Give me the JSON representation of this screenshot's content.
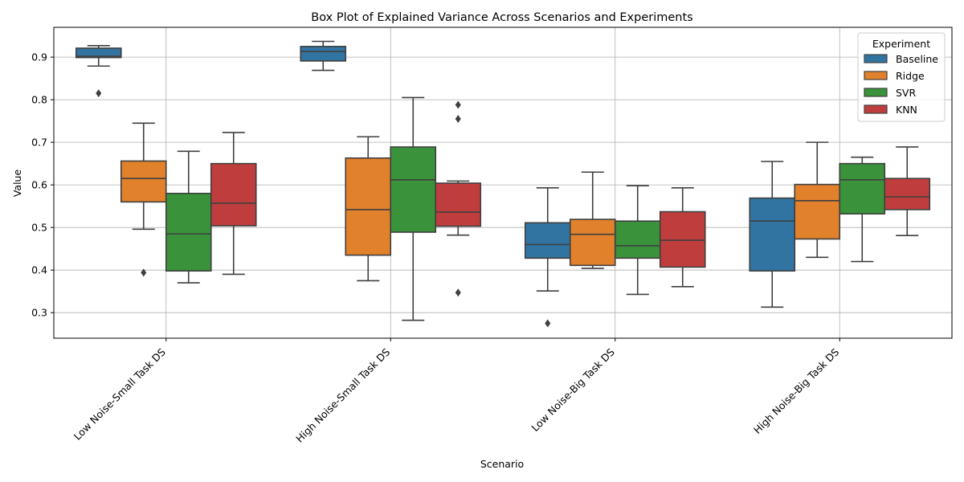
{
  "chart_data": {
    "type": "box",
    "title": "Box Plot of Explained Variance Across Scenarios and Experiments",
    "xlabel": "Scenario",
    "ylabel": "Value",
    "categories": [
      "Low Noise-Small Task DS",
      "High Noise-Small Task DS",
      "Low Noise-Big Task DS",
      "High Noise-Big Task DS"
    ],
    "ylim": [
      0.24,
      0.97
    ],
    "yticks": [
      "0.3",
      "0.4",
      "0.5",
      "0.6",
      "0.7",
      "0.8",
      "0.9"
    ],
    "grid": true,
    "legend": {
      "title": "Experiment",
      "placement": "top-right"
    },
    "series": [
      {
        "name": "Baseline",
        "color": "#3274a1",
        "boxes": [
          {
            "whisker_low": 0.879,
            "q1": 0.899,
            "median": 0.902,
            "q3": 0.921,
            "whisker_high": 0.927,
            "outliers": [
              0.815
            ]
          },
          {
            "whisker_low": 0.869,
            "q1": 0.891,
            "median": 0.913,
            "q3": 0.925,
            "whisker_high": 0.937,
            "outliers": []
          },
          {
            "whisker_low": 0.351,
            "q1": 0.428,
            "median": 0.46,
            "q3": 0.511,
            "whisker_high": 0.593,
            "outliers": [
              0.275
            ]
          },
          {
            "whisker_low": 0.313,
            "q1": 0.398,
            "median": 0.515,
            "q3": 0.569,
            "whisker_high": 0.655,
            "outliers": []
          }
        ]
      },
      {
        "name": "Ridge",
        "color": "#e1812c",
        "boxes": [
          {
            "whisker_low": 0.496,
            "q1": 0.56,
            "median": 0.615,
            "q3": 0.656,
            "whisker_high": 0.745,
            "outliers": [
              0.394
            ]
          },
          {
            "whisker_low": 0.375,
            "q1": 0.435,
            "median": 0.542,
            "q3": 0.663,
            "whisker_high": 0.713,
            "outliers": []
          },
          {
            "whisker_low": 0.404,
            "q1": 0.411,
            "median": 0.484,
            "q3": 0.519,
            "whisker_high": 0.63,
            "outliers": []
          },
          {
            "whisker_low": 0.43,
            "q1": 0.473,
            "median": 0.563,
            "q3": 0.601,
            "whisker_high": 0.7,
            "outliers": []
          }
        ]
      },
      {
        "name": "SVR",
        "color": "#3a923a",
        "boxes": [
          {
            "whisker_low": 0.37,
            "q1": 0.398,
            "median": 0.485,
            "q3": 0.58,
            "whisker_high": 0.679,
            "outliers": []
          },
          {
            "whisker_low": 0.282,
            "q1": 0.489,
            "median": 0.612,
            "q3": 0.689,
            "whisker_high": 0.805,
            "outliers": []
          },
          {
            "whisker_low": 0.343,
            "q1": 0.428,
            "median": 0.457,
            "q3": 0.515,
            "whisker_high": 0.598,
            "outliers": []
          },
          {
            "whisker_low": 0.42,
            "q1": 0.532,
            "median": 0.612,
            "q3": 0.65,
            "whisker_high": 0.665,
            "outliers": []
          }
        ]
      },
      {
        "name": "KNN",
        "color": "#c03d3e",
        "boxes": [
          {
            "whisker_low": 0.39,
            "q1": 0.504,
            "median": 0.557,
            "q3": 0.65,
            "whisker_high": 0.723,
            "outliers": []
          },
          {
            "whisker_low": 0.482,
            "q1": 0.503,
            "median": 0.536,
            "q3": 0.604,
            "whisker_high": 0.609,
            "outliers": [
              0.788,
              0.755,
              0.347
            ]
          },
          {
            "whisker_low": 0.361,
            "q1": 0.407,
            "median": 0.47,
            "q3": 0.537,
            "whisker_high": 0.593,
            "outliers": []
          },
          {
            "whisker_low": 0.481,
            "q1": 0.542,
            "median": 0.572,
            "q3": 0.615,
            "whisker_high": 0.689,
            "outliers": []
          }
        ]
      }
    ]
  }
}
